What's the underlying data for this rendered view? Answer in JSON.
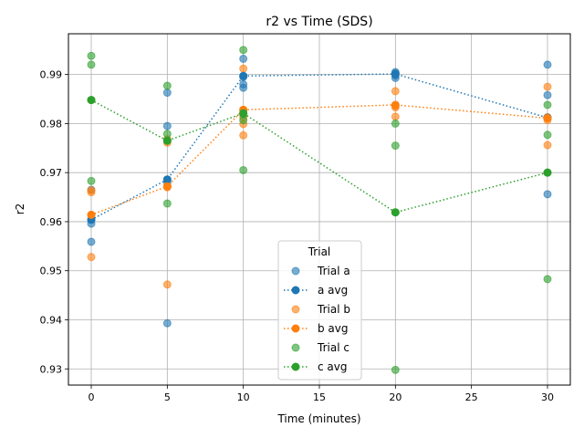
{
  "chart_data": {
    "type": "scatter",
    "title": "r2 vs Time (SDS)",
    "xlabel": "Time (minutes)",
    "ylabel": "r2",
    "xlim": [
      -1.5,
      31.5
    ],
    "ylim": [
      0.9267,
      0.9983
    ],
    "xticks": [
      0,
      5,
      10,
      15,
      20,
      25,
      30
    ],
    "xtick_labels": [
      "0",
      "5",
      "10",
      "15",
      "20",
      "25",
      "30"
    ],
    "yticks": [
      0.93,
      0.94,
      0.95,
      0.96,
      0.97,
      0.98,
      0.99
    ],
    "ytick_labels": [
      "0.93",
      "0.94",
      "0.95",
      "0.96",
      "0.97",
      "0.98",
      "0.99"
    ],
    "grid": true,
    "legend": {
      "title": "Trial",
      "placement": "lower-center",
      "entries": [
        {
          "label": "Trial a",
          "series": "trial_a",
          "kind": "scatter"
        },
        {
          "label": "a avg",
          "series": "avg_a",
          "kind": "line"
        },
        {
          "label": "Trial b",
          "series": "trial_b",
          "kind": "scatter"
        },
        {
          "label": "b avg",
          "series": "avg_b",
          "kind": "line"
        },
        {
          "label": "Trial c",
          "series": "trial_c",
          "kind": "scatter"
        },
        {
          "label": "c avg",
          "series": "avg_c",
          "kind": "line"
        }
      ]
    },
    "series": [
      {
        "id": "trial_a",
        "name": "Trial a",
        "kind": "scatter",
        "color": "#1f77b4",
        "points": [
          [
            0,
            0.9559
          ],
          [
            0,
            0.9596
          ],
          [
            0,
            0.9604
          ],
          [
            0,
            0.9665
          ],
          [
            5,
            0.9393
          ],
          [
            5,
            0.968
          ],
          [
            5,
            0.9686
          ],
          [
            5,
            0.9795
          ],
          [
            5,
            0.9863
          ],
          [
            10,
            0.9873
          ],
          [
            10,
            0.988
          ],
          [
            10,
            0.9895
          ],
          [
            10,
            0.9932
          ],
          [
            20,
            0.9893
          ],
          [
            20,
            0.9898
          ],
          [
            20,
            0.9902
          ],
          [
            20,
            0.9905
          ],
          [
            30,
            0.9656
          ],
          [
            30,
            0.9811
          ],
          [
            30,
            0.9858
          ],
          [
            30,
            0.992
          ]
        ]
      },
      {
        "id": "avg_a",
        "name": "a avg",
        "kind": "line",
        "color": "#1f77b4",
        "points": [
          [
            0,
            0.9604
          ],
          [
            5,
            0.9686
          ],
          [
            10,
            0.9897
          ],
          [
            20,
            0.9901
          ],
          [
            30,
            0.9812
          ]
        ]
      },
      {
        "id": "trial_b",
        "name": "Trial b",
        "kind": "scatter",
        "color": "#ff7f0e",
        "points": [
          [
            0,
            0.9528
          ],
          [
            0,
            0.9614
          ],
          [
            0,
            0.966
          ],
          [
            0,
            0.9664
          ],
          [
            5,
            0.9472
          ],
          [
            5,
            0.967
          ],
          [
            5,
            0.9673
          ],
          [
            5,
            0.9761
          ],
          [
            5,
            0.9768
          ],
          [
            10,
            0.9776
          ],
          [
            10,
            0.9799
          ],
          [
            10,
            0.9813
          ],
          [
            10,
            0.9828
          ],
          [
            10,
            0.9912
          ],
          [
            20,
            0.9814
          ],
          [
            20,
            0.9833
          ],
          [
            20,
            0.9836
          ],
          [
            20,
            0.9866
          ],
          [
            30,
            0.9756
          ],
          [
            30,
            0.9807
          ],
          [
            30,
            0.9813
          ],
          [
            30,
            0.9875
          ]
        ]
      },
      {
        "id": "avg_b",
        "name": "b avg",
        "kind": "line",
        "color": "#ff7f0e",
        "points": [
          [
            0,
            0.9614
          ],
          [
            5,
            0.9672
          ],
          [
            10,
            0.9828
          ],
          [
            20,
            0.9838
          ],
          [
            30,
            0.9811
          ]
        ]
      },
      {
        "id": "trial_c",
        "name": "Trial c",
        "kind": "scatter",
        "color": "#2ca02c",
        "points": [
          [
            0,
            0.9683
          ],
          [
            0,
            0.9848
          ],
          [
            0,
            0.992
          ],
          [
            0,
            0.9938
          ],
          [
            5,
            0.9637
          ],
          [
            5,
            0.9765
          ],
          [
            5,
            0.9779
          ],
          [
            5,
            0.9877
          ],
          [
            10,
            0.9705
          ],
          [
            10,
            0.9807
          ],
          [
            10,
            0.9819
          ],
          [
            10,
            0.995
          ],
          [
            20,
            0.9298
          ],
          [
            20,
            0.9619
          ],
          [
            20,
            0.9755
          ],
          [
            20,
            0.98
          ],
          [
            30,
            0.9483
          ],
          [
            30,
            0.97
          ],
          [
            30,
            0.9777
          ],
          [
            30,
            0.9838
          ]
        ]
      },
      {
        "id": "avg_c",
        "name": "c avg",
        "kind": "line",
        "color": "#2ca02c",
        "points": [
          [
            0,
            0.9848
          ],
          [
            5,
            0.9765
          ],
          [
            10,
            0.9821
          ],
          [
            20,
            0.9619
          ],
          [
            30,
            0.97
          ]
        ]
      }
    ]
  }
}
